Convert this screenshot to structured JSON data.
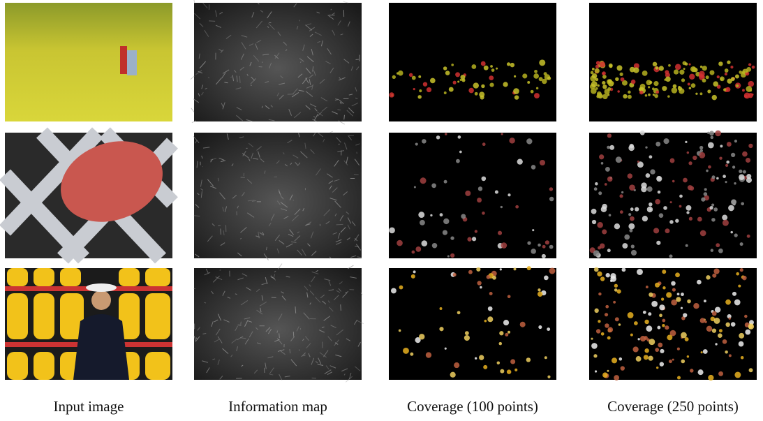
{
  "captions": [
    "Input image",
    "Information map",
    "Coverage (100 points)",
    "Coverage (250 points)"
  ]
}
